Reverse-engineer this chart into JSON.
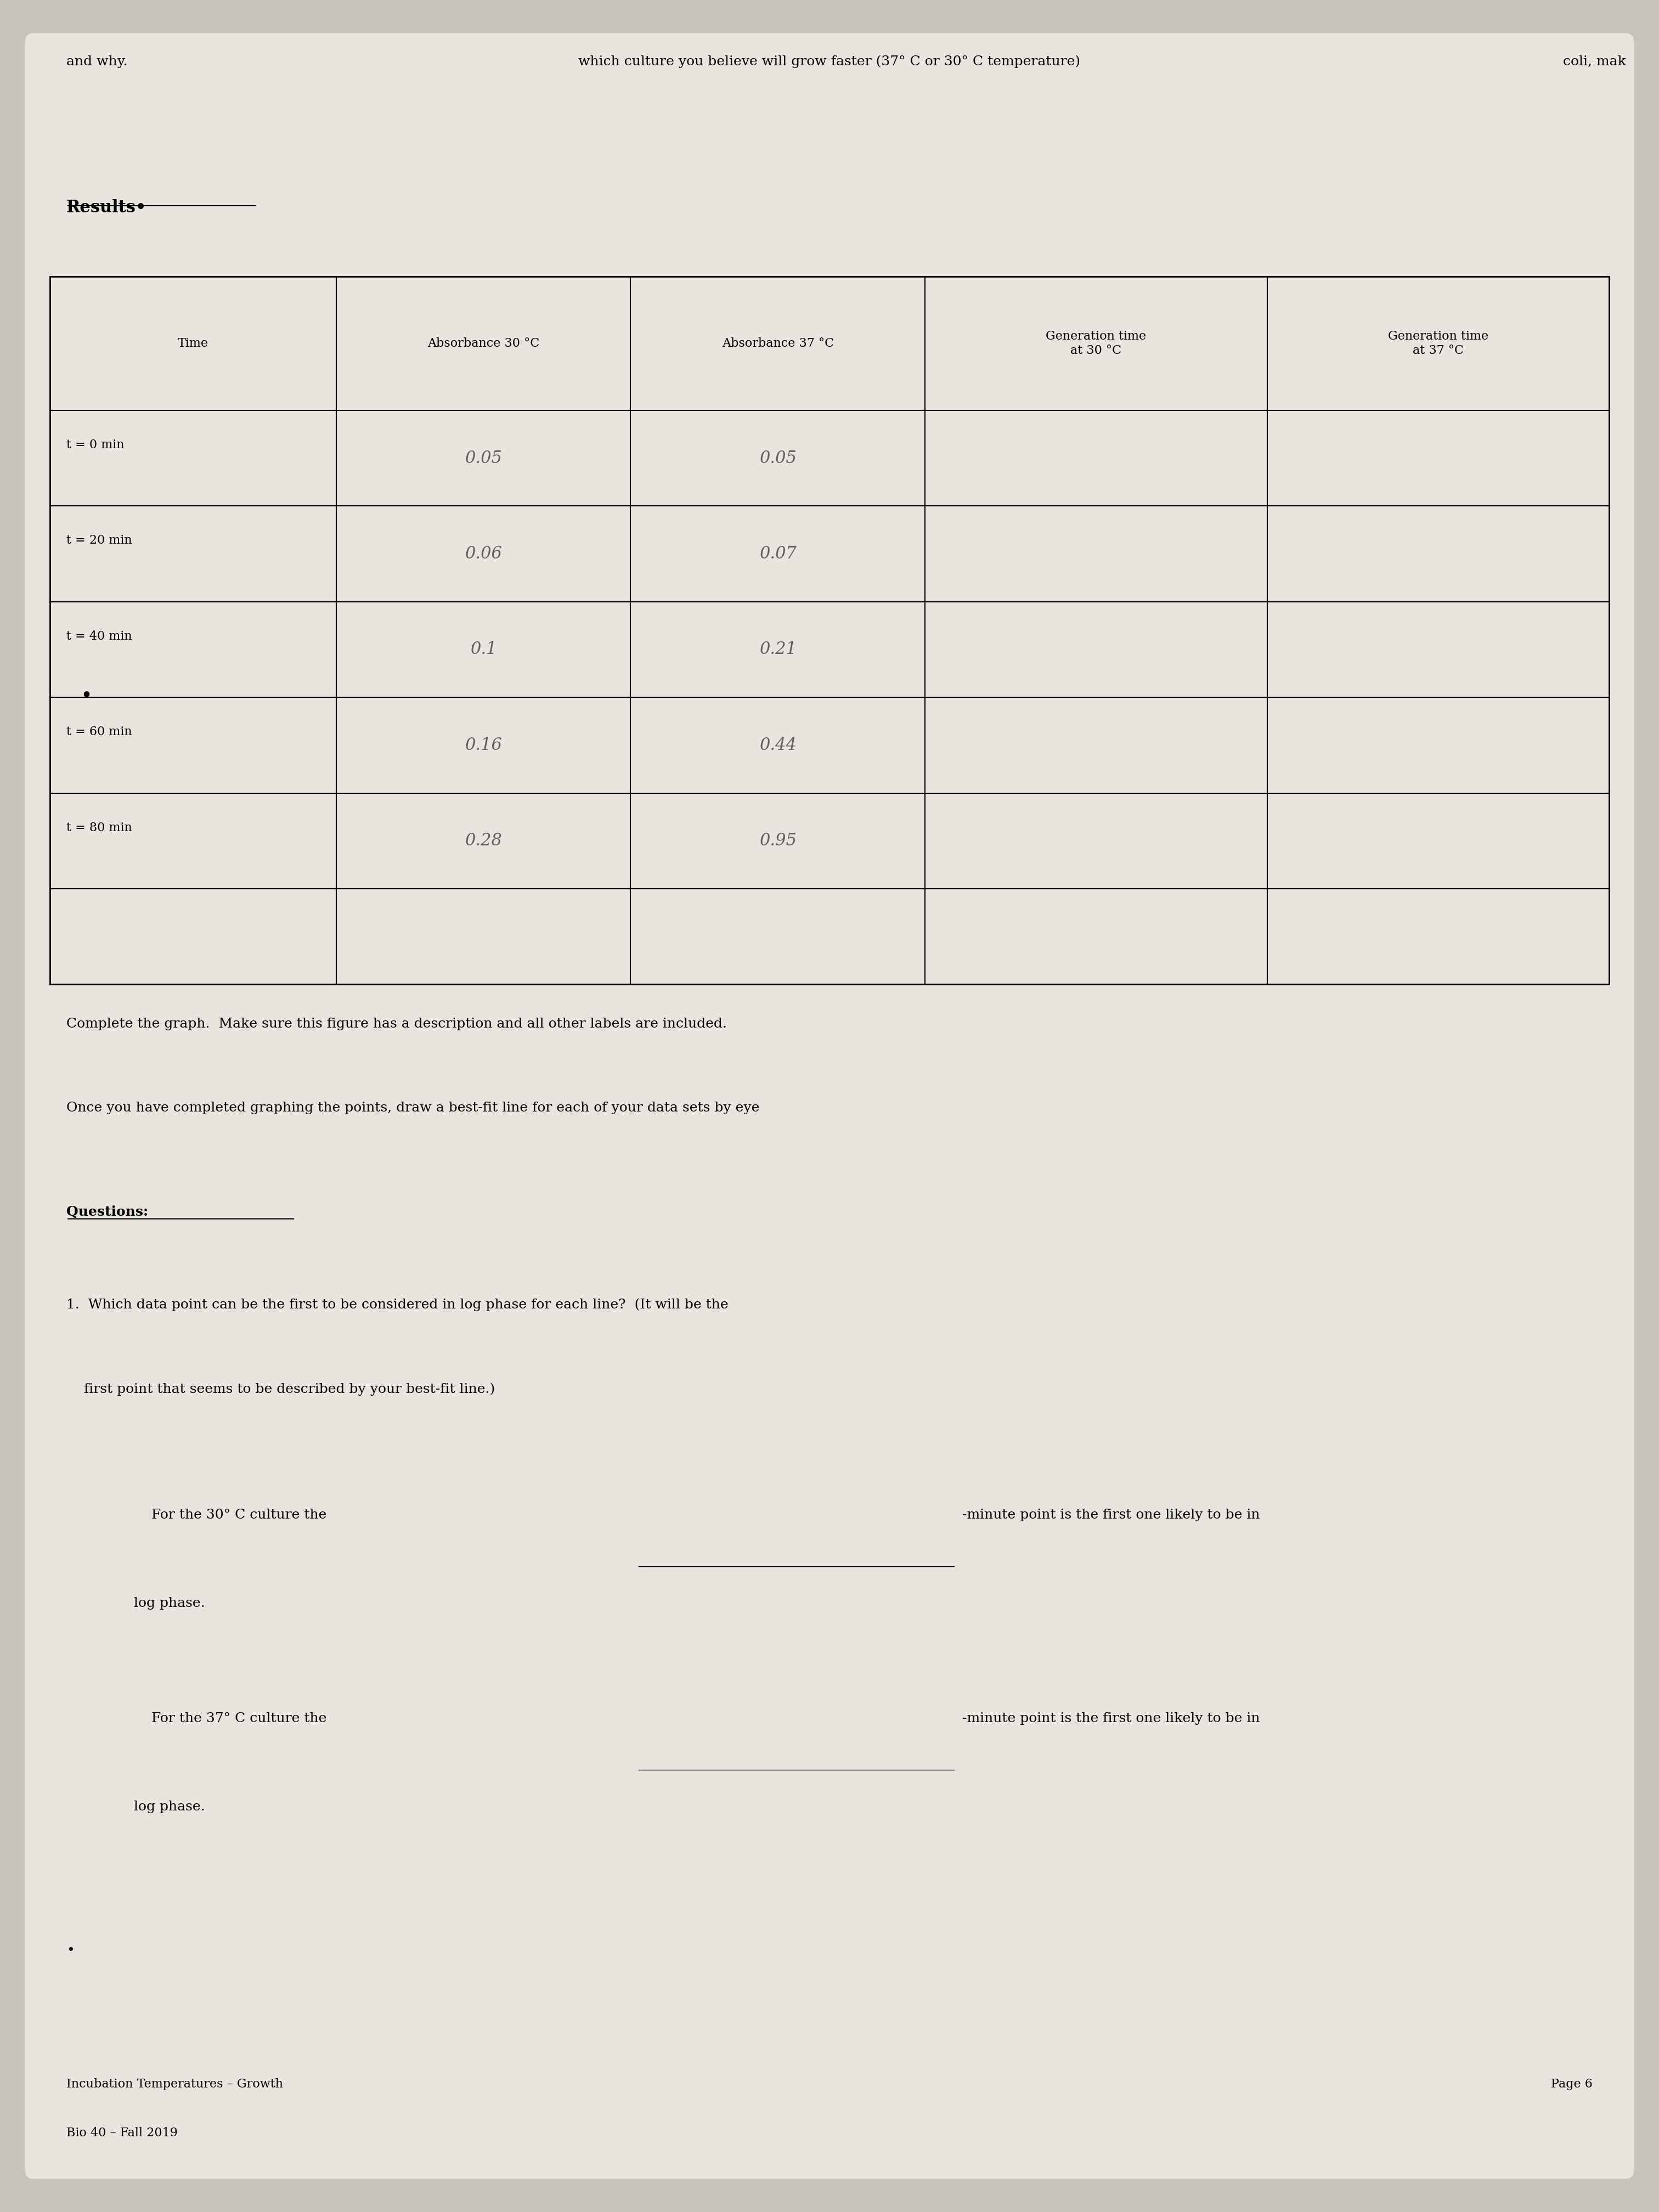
{
  "bg_color": "#c8c4bc",
  "paper_color": "#e8e4de",
  "top_text_left": "and why.",
  "top_text_center": "which culture you believe will grow faster (37° C or 30° C temperature)",
  "top_text_right_partial": "coli, mak",
  "results_label": "Results•",
  "table_headers": [
    "Time",
    "Absorbance 30 °C",
    "Absorbance 37 °C",
    "Generation time\nat 30 °C",
    "Generation time\nat 37 °C"
  ],
  "table_rows": [
    [
      "t = 0 min",
      "0.05",
      "0.05",
      "",
      ""
    ],
    [
      "t = 20 min",
      "0.06",
      "0.07",
      "",
      ""
    ],
    [
      "t = 40 min",
      "0.1",
      "0.21",
      "",
      ""
    ],
    [
      "t = 60 min",
      "0.16",
      "0.44",
      "",
      ""
    ],
    [
      "t = 80 min",
      "0.28",
      "0.95",
      "",
      ""
    ],
    [
      "",
      "",
      "",
      "",
      ""
    ]
  ],
  "instructions_line1": "Complete the graph.  Make sure this figure has a description and all other labels are included.",
  "instructions_line2": "Once you have completed graphing the points, draw a best-fit line for each of your data sets by eye",
  "questions_header": "Questions:",
  "question1_line1": "1.  Which data point can be the first to be considered in log phase for each line?  (It will be the",
  "question1_line2": "    first point that seems to be described by your best-fit line.)",
  "q1_line1_pre": "        For the 30° C culture the ",
  "q1_line1_post": "-minute point is the first one likely to be in",
  "q1_line1_end": "    log phase.",
  "q1_line2_pre": "        For the 37° C culture the ",
  "q1_line2_post": "-minute point is the first one likely to be in",
  "q1_line2_end": "    log phase.",
  "bullet": "•",
  "footer_left_line1": "Incubation Temperatures – Growth",
  "footer_left_line2": "Bio 40 – Fall 2019",
  "footer_right": "Page 6",
  "font_size_body": 18,
  "font_size_header": 20,
  "font_size_results": 22,
  "font_size_footer": 16
}
